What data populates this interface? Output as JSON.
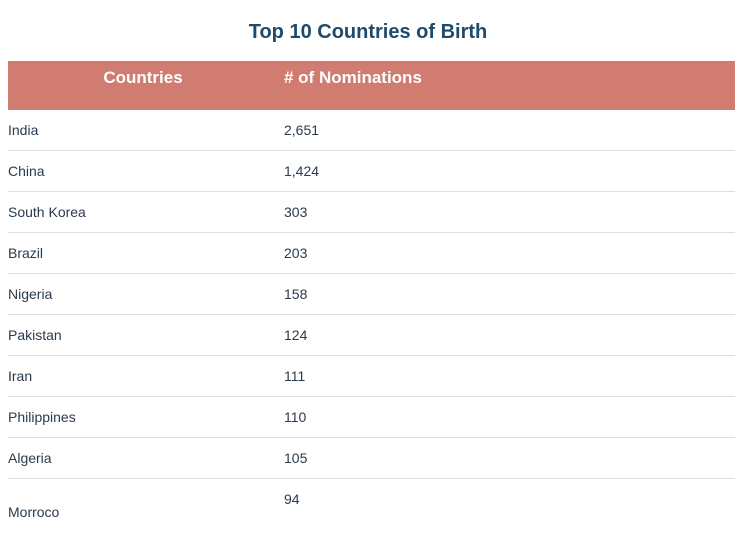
{
  "chart_data": {
    "type": "table",
    "title": "Top 10 Countries of Birth",
    "columns": [
      "Countries",
      "# of Nominations"
    ],
    "rows": [
      [
        "India",
        "2,651"
      ],
      [
        "China",
        "1,424"
      ],
      [
        "South Korea",
        "303"
      ],
      [
        "Brazil",
        "203"
      ],
      [
        "Nigeria",
        "158"
      ],
      [
        "Pakistan",
        "124"
      ],
      [
        "Iran",
        "111"
      ],
      [
        "Philippines",
        "110"
      ],
      [
        "Algeria",
        "105"
      ],
      [
        "Morroco",
        "94"
      ]
    ]
  },
  "colors": {
    "header_background": "#d17c71",
    "header_text": "#ffffff",
    "title_text": "#1f4a6b",
    "body_text": "#2a3b4c",
    "row_divider": "#dedede"
  }
}
